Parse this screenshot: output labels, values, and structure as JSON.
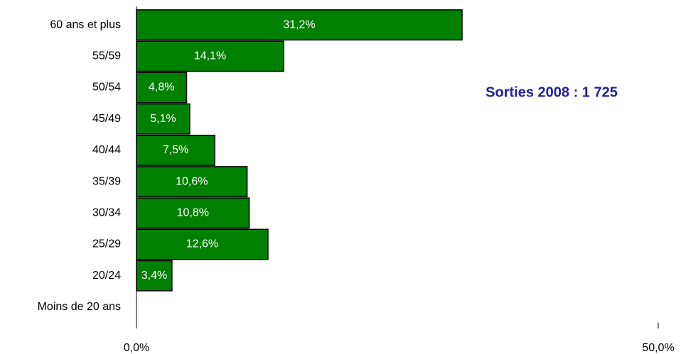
{
  "chart_data": {
    "type": "hbar",
    "categories": [
      "60 ans et plus",
      "55/59",
      "50/54",
      "45/49",
      "40/44",
      "35/39",
      "30/34",
      "25/29",
      "20/24",
      "Moins de 20 ans"
    ],
    "values": [
      31.2,
      14.1,
      4.8,
      5.1,
      7.5,
      10.6,
      10.8,
      12.6,
      3.4,
      null
    ],
    "value_labels": [
      "31,2%",
      "14,1%",
      "4,8%",
      "5,1%",
      "7,5%",
      "10,6%",
      "10,8%",
      "12,6%",
      "3,4%",
      null
    ],
    "color": "#008000",
    "xlim": [
      0,
      50
    ],
    "xticks": [
      {
        "value": 0,
        "label": "0,0%"
      },
      {
        "value": 50,
        "label": "50,0%"
      }
    ],
    "annotation": "Sorties 2008 : 1 725"
  }
}
